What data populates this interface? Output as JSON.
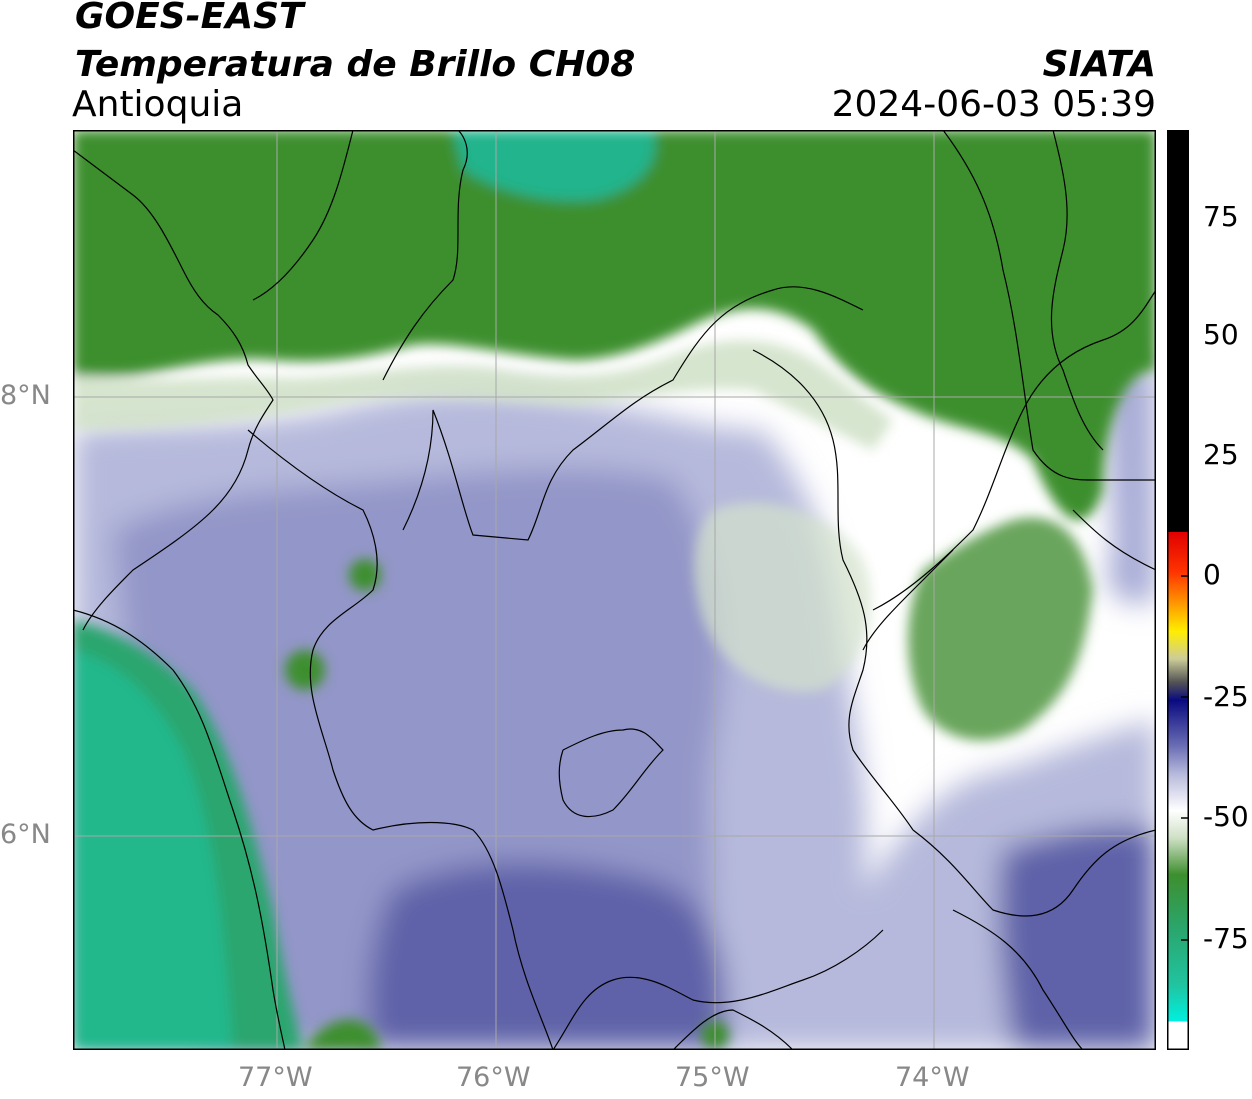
{
  "header": {
    "satellite": "GOES-EAST",
    "product": "Temperatura de Brillo CH08",
    "region": "Antioquia",
    "agency": "SIATA",
    "datetime": "2024-06-03 05:39"
  },
  "map": {
    "lat_labels": [
      "8°N",
      "6°N"
    ],
    "lon_labels": [
      "77°W",
      "76°W",
      "75°W",
      "74°W"
    ],
    "colors": {
      "green": "#3d8f2e",
      "teal": "#20b88c",
      "light_green": "#cfe0c5",
      "white": "#ffffff",
      "light_purple": "#b6b9db",
      "mid_purple": "#8c8fc4",
      "dark_purple": "#5f62a8",
      "grid": "#a8a8a8",
      "borders": "#000000"
    }
  },
  "colorbar": {
    "ticks": [
      "75",
      "50",
      "25",
      "0",
      "-25",
      "-50",
      "-75"
    ]
  }
}
